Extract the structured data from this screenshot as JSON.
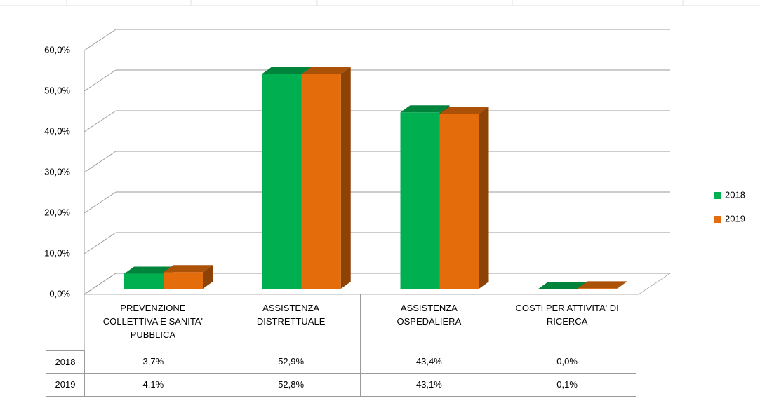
{
  "chart_data": {
    "type": "bar3d",
    "categories": [
      "PREVENZIONE COLLETTIVA E SANITA' PUBBLICA",
      "ASSISTENZA DISTRETTUALE",
      "ASSISTENZA OSPEDALIERA",
      "COSTI PER ATTIVITA' DI RICERCA"
    ],
    "series": [
      {
        "name": "2018",
        "color": "#00b050",
        "values": [
          3.7,
          52.9,
          43.4,
          0.0
        ],
        "value_labels": [
          "3,7%",
          "52,9%",
          "43,4%",
          "0,0%"
        ]
      },
      {
        "name": "2019",
        "color": "#e46c0a",
        "values": [
          4.1,
          52.8,
          43.1,
          0.1
        ],
        "value_labels": [
          "4,1%",
          "52,8%",
          "43,1%",
          "0,1%"
        ]
      }
    ],
    "ylim": [
      0,
      60
    ],
    "yticks": [
      {
        "value": 0,
        "label": "0,0%"
      },
      {
        "value": 10,
        "label": "10,0%"
      },
      {
        "value": 20,
        "label": "20,0%"
      },
      {
        "value": 30,
        "label": "30,0%"
      },
      {
        "value": 40,
        "label": "40,0%"
      },
      {
        "value": 50,
        "label": "50,0%"
      },
      {
        "value": 60,
        "label": "60,0%"
      }
    ],
    "grid": true,
    "legend": "right",
    "data_table": true
  }
}
